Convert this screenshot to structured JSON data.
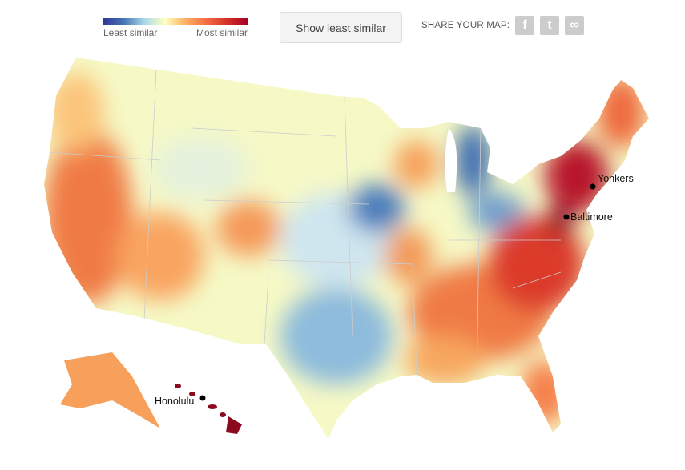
{
  "legend": {
    "min_label": "Least similar",
    "max_label": "Most similar",
    "colors": [
      "#313695",
      "#4575b4",
      "#abd9e9",
      "#ffffbf",
      "#fdae61",
      "#f46d43",
      "#d73027",
      "#a50026"
    ]
  },
  "toggle_button": "Show least similar",
  "share": {
    "label": "SHARE YOUR MAP:",
    "icons": [
      "facebook-icon",
      "twitter-icon",
      "link-icon"
    ]
  },
  "cities": [
    {
      "name": "Yonkers"
    },
    {
      "name": "Baltimore"
    },
    {
      "name": "Honolulu"
    }
  ]
}
